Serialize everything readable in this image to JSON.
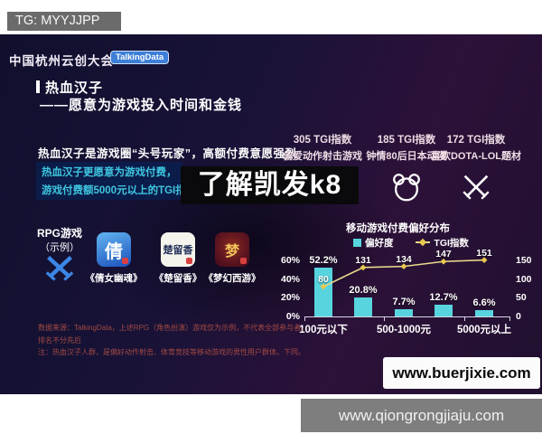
{
  "page": {
    "tg_badge": "TG: MYYJJPP",
    "watermark": "了解凯发k8",
    "bottom_bar_url": "www.qiongrongjiaju.com"
  },
  "slide": {
    "header": {
      "brand": "中国杭州云创大会",
      "logo": "TalkingData"
    },
    "title": {
      "line1": "热血汉子",
      "line2": "——愿意为游戏投入时间和金钱"
    },
    "highlights": {
      "line1": "热血汉子是游戏圈“头号玩家”，高额付费意愿强烈",
      "line2": "热血汉子更愿意为游戏付费，",
      "line3": "游戏付费额5000元以上的TGI指数达到151"
    },
    "rpg": {
      "label": "RPG游戏",
      "sublabel": "（示例）",
      "games": [
        {
          "name": "《倩女幽魂》",
          "icon_glyph": "倩"
        },
        {
          "name": "《楚留香》",
          "icon_glyph": "楚留香"
        },
        {
          "name": "《梦幻西游》",
          "icon_glyph": "梦"
        }
      ]
    },
    "stats": [
      {
        "value": "305 TGI指数",
        "desc": "偏爱动作射击游戏",
        "icon": "crosshair-icon"
      },
      {
        "value": "185 TGI指数",
        "desc": "钟情80后日本动漫",
        "icon": "bear-icon"
      },
      {
        "value": "172 TGI指数",
        "desc": "喜欢DOTA-LOL题材",
        "icon": "crossed-swords-icon"
      }
    ],
    "notes": [
      "数据来源：TalkingData，上述RPG（角色扮演）游戏仅为示例，不代表全部参与者，排名不分先后",
      "注：热血汉子人群，是偏好动作射击、体育竞技等移动游戏的男性用户群体。下同。"
    ],
    "site_box_url": "www.buerjixie.com"
  },
  "chart_data": {
    "type": "bar",
    "title": "移动游戏付费偏好分布",
    "legend": [
      "偏好度",
      "TGI指数"
    ],
    "legend_position": "top",
    "grid": false,
    "categories": [
      "100元以下",
      "",
      "500-1000元",
      "",
      "5000元以上"
    ],
    "x_tick_labels": [
      {
        "text": "100元以下",
        "index": 0
      },
      {
        "text": "500-1000元",
        "index": 2
      },
      {
        "text": "5000元以上",
        "index": 4
      }
    ],
    "series": [
      {
        "name": "偏好度",
        "type": "bar",
        "color": "#57d4de",
        "values": [
          52.2,
          20.8,
          7.7,
          12.7,
          6.6
        ],
        "labels": [
          "52.2%",
          "20.8%",
          "7.7%",
          "12.7%",
          "6.6%"
        ]
      },
      {
        "name": "TGI指数",
        "type": "line",
        "color": "#ead98c",
        "marker_color": "#e8c94f",
        "values": [
          80,
          131,
          134,
          147,
          151
        ],
        "labels": [
          "80",
          "131",
          "134",
          "147",
          "151"
        ]
      }
    ],
    "y_left": {
      "ticks": [
        "0%",
        "20%",
        "40%",
        "60%"
      ],
      "tick_values": [
        0,
        20,
        40,
        60
      ],
      "max": 60
    },
    "y_right": {
      "ticks": [
        "0",
        "50",
        "100",
        "150"
      ],
      "tick_values": [
        0,
        50,
        100,
        150
      ],
      "max": 150
    }
  },
  "colors": {
    "slide_bg_left": "#10102d",
    "slide_bg_right": "#2c1138",
    "highlight_cyan": "#3ec6e0",
    "bar_teal": "#57d4de",
    "tgi_line_yellow": "#ead98c",
    "stat_text_pink": "#eedbe4",
    "note_red": "#a34a42",
    "talkingdata_blue": "#3d7fd6"
  }
}
